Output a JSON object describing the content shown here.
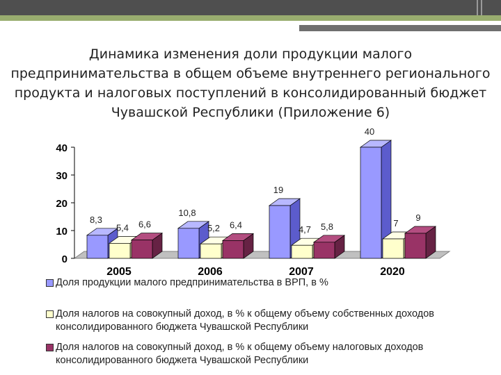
{
  "title_lines": [
    "Динамика изменения доли продукции малого",
    "предпринимательства в общем объеме внутреннего регионального",
    "продукта и налоговых поступлений в консолидированный бюджет",
    "Чувашской Республики (Приложение 6)"
  ],
  "colors": {
    "band_dark": "#4f4f4f",
    "band_accent": "#99ad6f"
  },
  "chart_data": {
    "type": "bar",
    "categories": [
      "2005",
      "2006",
      "2007",
      "2020"
    ],
    "ylim": [
      0,
      40
    ],
    "yticks": [
      "0",
      "10",
      "20",
      "30",
      "40"
    ],
    "grid": false,
    "legend_position": "bottom",
    "series": [
      {
        "name": "Доля продукции малого предпринимательства в ВРП, в %",
        "values": [
          8.3,
          10.8,
          19,
          40
        ],
        "labels": [
          "8,3",
          "10,8",
          "19",
          "40"
        ],
        "color": "#9999ff",
        "side": "#5c5ccc",
        "top": "#b8b8ff"
      },
      {
        "name": "Доля налогов на совокупный доход, в % к общему объему собственных доходов консолидированного бюджета Чувашской Республики",
        "name_lines": [
          "Доля налогов на совокупный доход, в % к общему объему собственных доходов",
          "консолидированного бюджета Чувашской Республики"
        ],
        "values": [
          5.4,
          5.2,
          4.7,
          7
        ],
        "labels": [
          "5,4",
          "5,2",
          "4,7",
          "7"
        ],
        "color": "#ffffcc",
        "side": "#c8c896",
        "top": "#ffffe6"
      },
      {
        "name": "Доля налогов на совокупный доход, в % к общему объему налоговых доходов консолидированного бюджета Чувашской Республики",
        "name_lines": [
          "Доля налогов на совокупный доход, в % к общему объему налоговых доходов",
          "консолидированного бюджета Чувашской Республики"
        ],
        "values": [
          6.6,
          6.4,
          5.8,
          9
        ],
        "labels": [
          "6,6",
          "6,4",
          "5,8",
          "9"
        ],
        "color": "#993366",
        "side": "#662244",
        "top": "#b34d80"
      }
    ]
  }
}
